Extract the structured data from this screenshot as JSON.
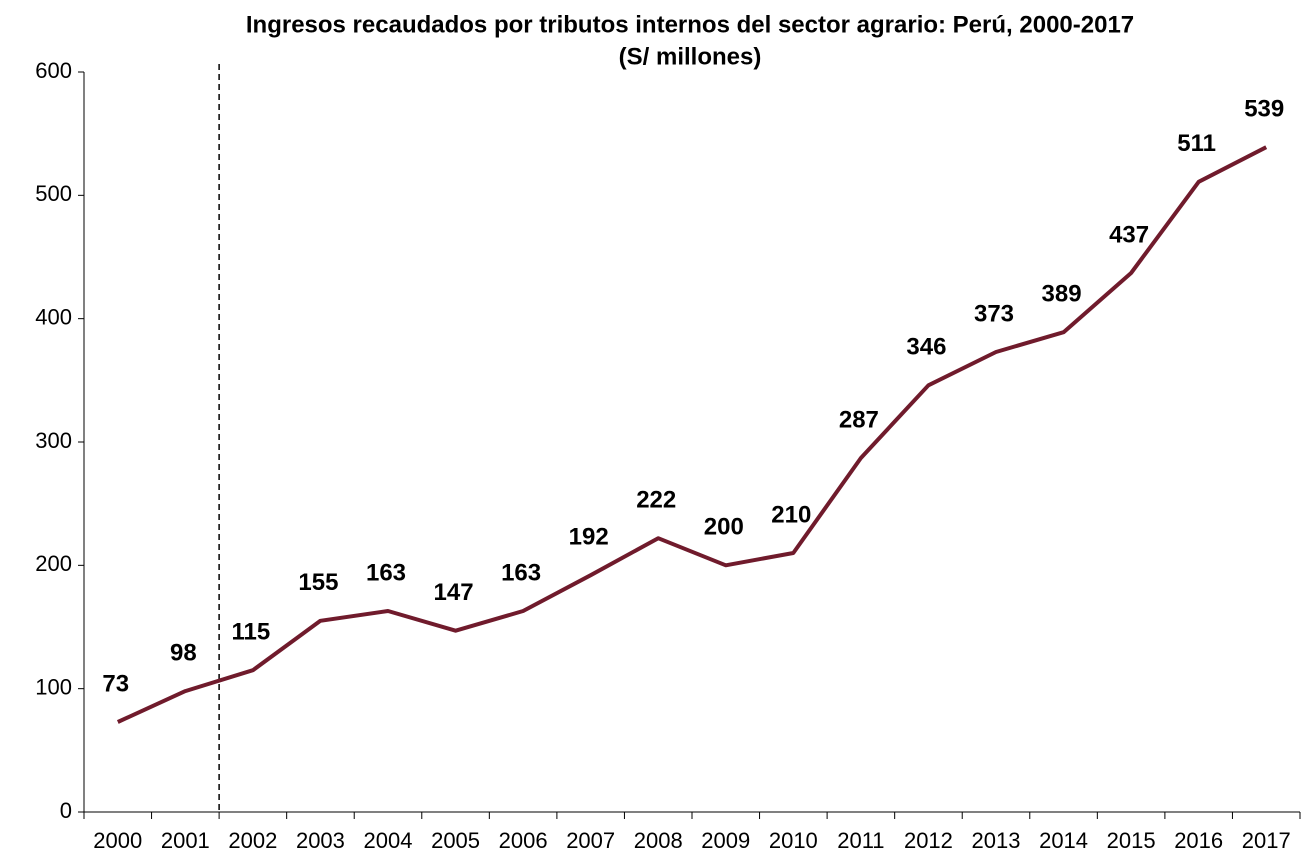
{
  "chart_data": {
    "type": "line",
    "title": "Ingresos recaudados por tributos internos del sector agrario: Perú, 2000-2017",
    "subtitle": "(S/ millones)",
    "categories": [
      "2000",
      "2001",
      "2002",
      "2003",
      "2004",
      "2005",
      "2006",
      "2007",
      "2008",
      "2009",
      "2010",
      "2011",
      "2012",
      "2013",
      "2014",
      "2015",
      "2016",
      "2017"
    ],
    "series": [
      {
        "name": "Ingresos",
        "color": "#701b2c",
        "values": [
          73,
          98,
          115,
          155,
          163,
          147,
          163,
          192,
          222,
          200,
          210,
          287,
          346,
          373,
          389,
          437,
          511,
          539
        ]
      }
    ],
    "ylim": [
      0,
      600
    ],
    "yticks": [
      0,
      100,
      200,
      300,
      400,
      500,
      600
    ],
    "grid": false
  }
}
